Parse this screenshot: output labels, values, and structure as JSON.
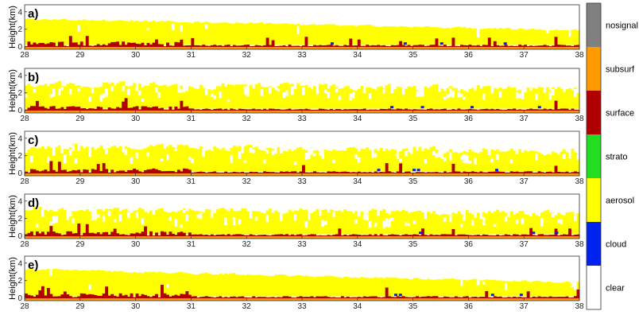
{
  "chart_data": {
    "type": "heatmap",
    "ylabel": "Height(km)",
    "x_ticks": [
      "28",
      "29",
      "30",
      "31",
      "32",
      "33",
      "34",
      "35",
      "36",
      "37",
      "38"
    ],
    "y_ticks": [
      "4",
      "2",
      "0"
    ],
    "xlim": [
      28,
      38
    ],
    "ylim": [
      -0.3,
      4.8
    ],
    "colorbar": {
      "placement": "right",
      "classes": [
        {
          "label": "nosignal",
          "color": "#808080"
        },
        {
          "label": "subsurf",
          "color": "#FF9A00"
        },
        {
          "label": "surface",
          "color": "#B00000"
        },
        {
          "label": "strato",
          "color": "#22DD22"
        },
        {
          "label": "aerosol",
          "color": "#FFFF00"
        },
        {
          "label": "cloud",
          "color": "#0022EE"
        },
        {
          "label": "clear",
          "color": "#FFFFFF"
        }
      ]
    },
    "panels": [
      {
        "label": "a)",
        "aerosol_top_start_km": 3.2,
        "aerosol_top_end_km": 1.9,
        "variability": 0.35,
        "gaps": 0.05,
        "surface_km": 0.55,
        "seed": 3
      },
      {
        "label": "b)",
        "aerosol_top_start_km": 3.0,
        "aerosol_top_end_km": 2.4,
        "variability": 1.1,
        "gaps": 0.35,
        "surface_km": 0.45,
        "seed": 11
      },
      {
        "label": "c)",
        "aerosol_top_start_km": 3.1,
        "aerosol_top_end_km": 2.5,
        "variability": 1.1,
        "gaps": 0.35,
        "surface_km": 0.5,
        "seed": 19
      },
      {
        "label": "d)",
        "aerosol_top_start_km": 3.1,
        "aerosol_top_end_km": 2.6,
        "variability": 1.0,
        "gaps": 0.35,
        "surface_km": 0.5,
        "seed": 27
      },
      {
        "label": "e)",
        "aerosol_top_start_km": 3.3,
        "aerosol_top_end_km": 1.8,
        "variability": 0.35,
        "gaps": 0.06,
        "surface_km": 0.5,
        "seed": 41
      }
    ]
  }
}
